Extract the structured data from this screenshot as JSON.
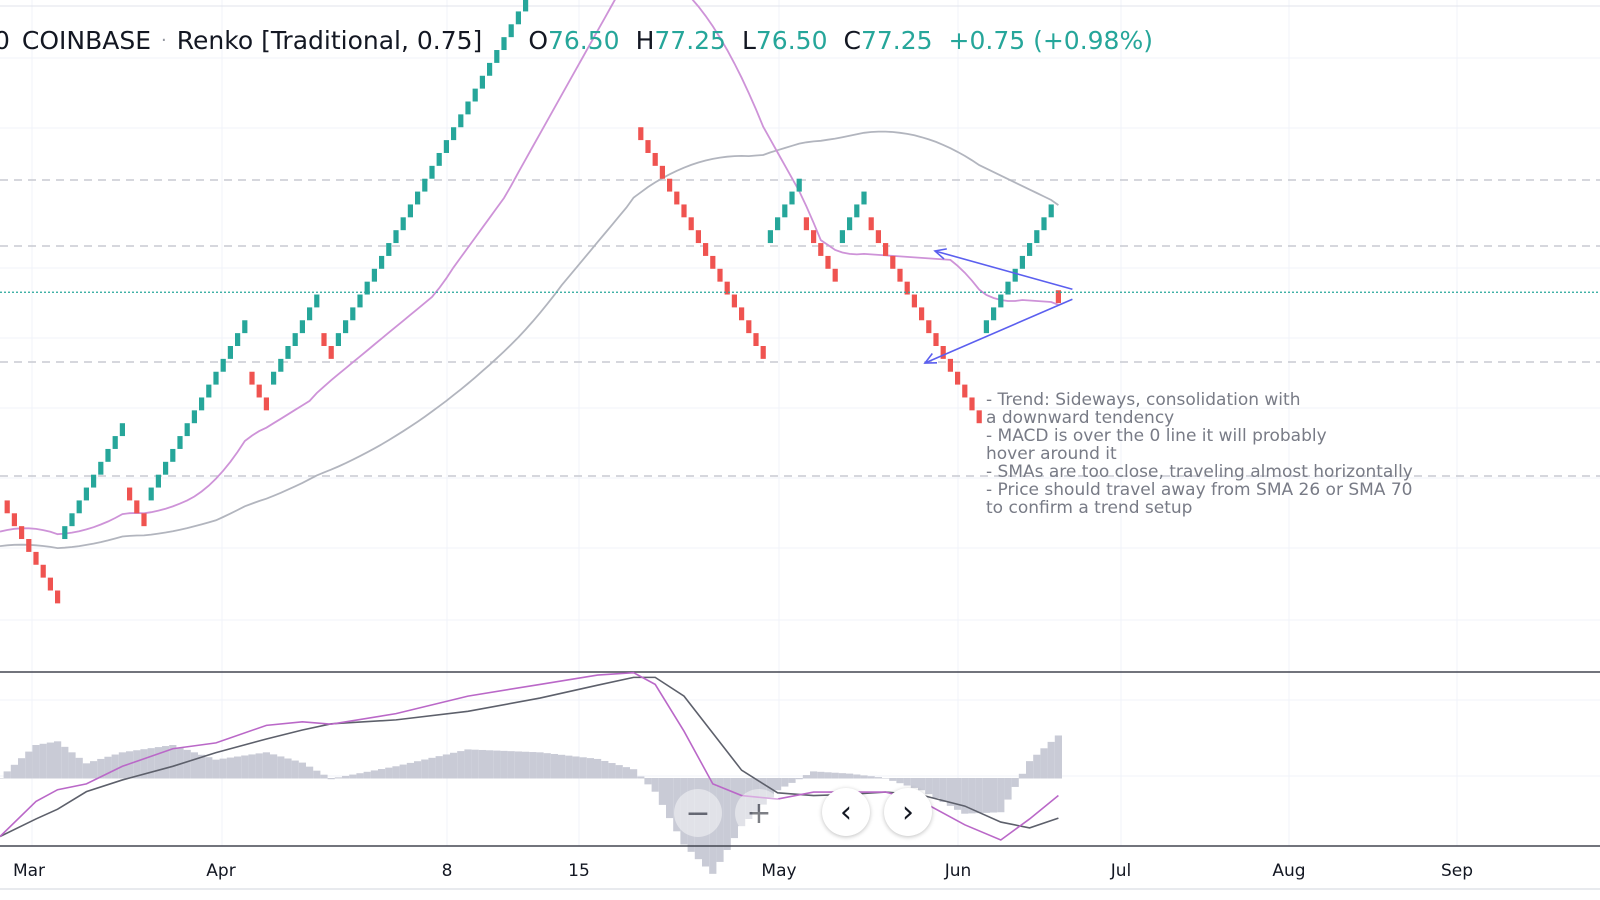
{
  "header": {
    "symbol_prefix": "0",
    "exchange": "COINBASE",
    "chart_type": "Renko [Traditional, 0.75]",
    "ohlc": [
      {
        "key": "O",
        "value": "76.50"
      },
      {
        "key": "H",
        "value": "77.25"
      },
      {
        "key": "L",
        "value": "76.50"
      },
      {
        "key": "C",
        "value": "77.25"
      }
    ],
    "change": "+0.75 (+0.98%)"
  },
  "note": {
    "lines": [
      "- Trend: Sideways, consolidation with",
      "a downward tendency",
      "- MACD is over the 0 line it will probably",
      "hover around it",
      "- SMAs are too close, traveling almost horizontally",
      "- Price should travel away from SMA 26 or SMA 70",
      "to confirm a trend setup"
    ]
  },
  "x_axis": {
    "labels": [
      "Mar",
      "Apr",
      "8",
      "15",
      "May",
      "Jun",
      "Jul",
      "Aug",
      "Sep"
    ]
  },
  "controls": {
    "zoom_out_icon": "minus-icon",
    "zoom_in_icon": "plus-icon",
    "scroll_left_icon": "chevron-left-icon",
    "scroll_right_icon": "chevron-right-icon",
    "zoom_out_label": "−",
    "zoom_in_label": "+",
    "scroll_left_label": "‹",
    "scroll_right_label": "›"
  },
  "colors": {
    "up_brick": "#26a69a",
    "down_brick": "#ef5350",
    "sma_fast": "#ce93d8",
    "sma_slow": "#b2b5be",
    "macd_line": "#ba68c8",
    "signal_line": "#5d606b",
    "histogram": "#c9cbd6",
    "arrow": "#5b5fef",
    "last_price_line": "#26a69a"
  },
  "chart_data": {
    "type": "line",
    "description_series": [
      {
        "name": "",
        "legend": false
      }
    ],
    "renko": {
      "brick_size": 0.75,
      "last_close": 77.25,
      "pivots": [
        {
          "x": 0,
          "y": 65.0
        },
        {
          "x": 8,
          "y": 62.75
        },
        {
          "x": 17,
          "y": 65.75
        },
        {
          "x": 20,
          "y": 65.0
        },
        {
          "x": 34,
          "y": 72.5
        },
        {
          "x": 37,
          "y": 71.75
        },
        {
          "x": 44,
          "y": 74.75
        },
        {
          "x": 46,
          "y": 74.0
        },
        {
          "x": 88,
          "y": 86.75
        },
        {
          "x": 106,
          "y": 80.0
        },
        {
          "x": 111,
          "y": 81.5
        },
        {
          "x": 116,
          "y": 80.0
        },
        {
          "x": 120,
          "y": 81.5
        },
        {
          "x": 136,
          "y": 74.75
        },
        {
          "x": 146,
          "y": 77.25
        },
        {
          "x": 147,
          "y": 76.5
        }
      ]
    },
    "macd": {
      "zero_line": 0,
      "histogram_sign": [
        "negative",
        "positive",
        "negative",
        "positive"
      ]
    },
    "projections": [
      {
        "direction": "up"
      },
      {
        "direction": "down"
      }
    ]
  }
}
